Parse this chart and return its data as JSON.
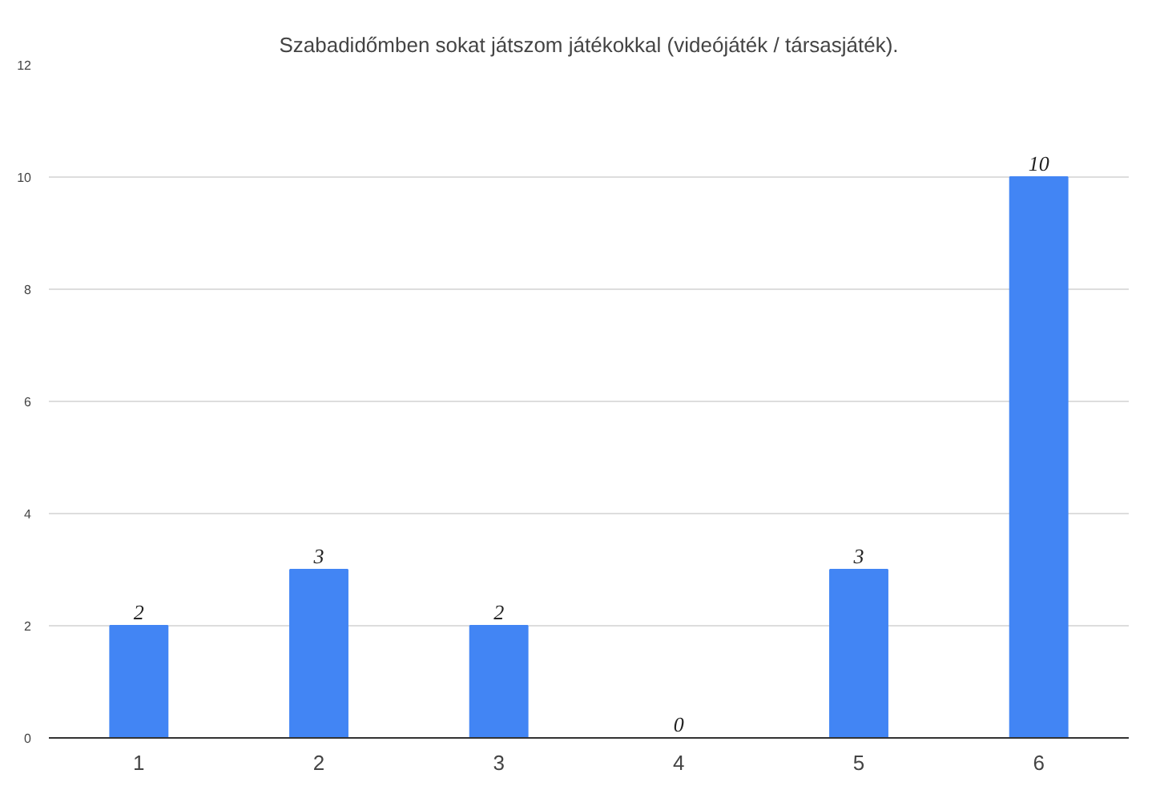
{
  "chart_data": {
    "type": "bar",
    "title": "Szabadidőmben sokat játszom játékokkal (videójáték / társasjáték).",
    "categories": [
      "1",
      "2",
      "3",
      "4",
      "5",
      "6"
    ],
    "values": [
      2,
      3,
      2,
      0,
      3,
      10
    ],
    "color": "#4285f4",
    "ylim": [
      0,
      12
    ],
    "yticks": [
      0,
      2,
      4,
      6,
      8,
      10,
      12
    ],
    "grid": "y",
    "data_labels": true
  }
}
